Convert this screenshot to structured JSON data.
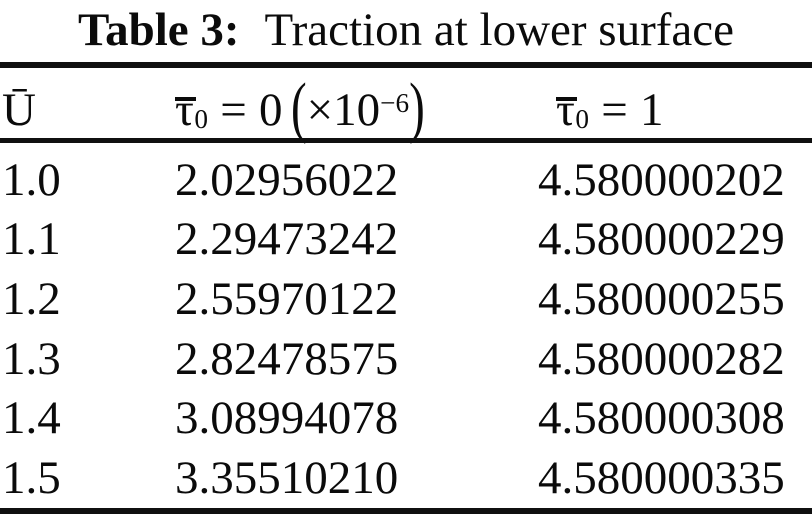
{
  "caption": {
    "label": "Table 3:",
    "text": "Traction at lower surface"
  },
  "header": {
    "col1": "Ū",
    "col2": {
      "symbol": "τ",
      "sub": "0",
      "eq": "=",
      "value": "0",
      "open_paren": "(",
      "factor_base": "×10",
      "factor_exp": "−6",
      "close_paren": ")"
    },
    "col3": {
      "symbol": "τ",
      "sub": "0",
      "eq": "=",
      "value": "1"
    }
  },
  "table": {
    "rows": [
      [
        "1.0",
        "2.02956022",
        "4.580000202"
      ],
      [
        "1.1",
        "2.29473242",
        "4.580000229"
      ],
      [
        "1.2",
        "2.55970122",
        "4.580000255"
      ],
      [
        "1.3",
        "2.82478575",
        "4.580000282"
      ],
      [
        "1.4",
        "3.08994078",
        "4.580000308"
      ],
      [
        "1.5",
        "3.35510210",
        "4.580000335"
      ]
    ]
  },
  "colors": {
    "text": "#0b0b0b",
    "background": "#ffffff",
    "rule": "#101010"
  },
  "chart_data": {
    "type": "table",
    "title": "Table 3: Traction at lower surface",
    "columns": [
      "Ū",
      "τ̄₀ = 0 (×10⁻⁶)",
      "τ̄₀ = 1"
    ],
    "rows": [
      [
        1.0,
        2.02956022,
        4.580000202
      ],
      [
        1.1,
        2.29473242,
        4.580000229
      ],
      [
        1.2,
        2.55970122,
        4.580000255
      ],
      [
        1.3,
        2.82478575,
        4.580000282
      ],
      [
        1.4,
        3.08994078,
        4.580000308
      ],
      [
        1.5,
        3.3551021,
        4.580000335
      ]
    ]
  }
}
